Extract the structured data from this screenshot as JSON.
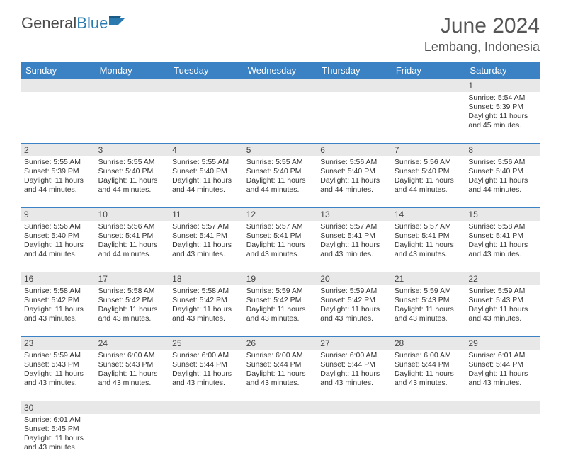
{
  "brand": {
    "text1": "General",
    "text2": "Blue"
  },
  "title": "June 2024",
  "location": "Lembang, Indonesia",
  "colors": {
    "header_bg": "#3b82c4",
    "header_text": "#ffffff",
    "daynum_bg": "#e8e8e8",
    "cell_border": "#3b82c4",
    "body_text": "#333333",
    "title_text": "#555555"
  },
  "day_names": [
    "Sunday",
    "Monday",
    "Tuesday",
    "Wednesday",
    "Thursday",
    "Friday",
    "Saturday"
  ],
  "weeks": [
    [
      null,
      null,
      null,
      null,
      null,
      null,
      {
        "n": "1",
        "sr": "Sunrise: 5:54 AM",
        "ss": "Sunset: 5:39 PM",
        "d1": "Daylight: 11 hours",
        "d2": "and 45 minutes."
      }
    ],
    [
      {
        "n": "2",
        "sr": "Sunrise: 5:55 AM",
        "ss": "Sunset: 5:39 PM",
        "d1": "Daylight: 11 hours",
        "d2": "and 44 minutes."
      },
      {
        "n": "3",
        "sr": "Sunrise: 5:55 AM",
        "ss": "Sunset: 5:40 PM",
        "d1": "Daylight: 11 hours",
        "d2": "and 44 minutes."
      },
      {
        "n": "4",
        "sr": "Sunrise: 5:55 AM",
        "ss": "Sunset: 5:40 PM",
        "d1": "Daylight: 11 hours",
        "d2": "and 44 minutes."
      },
      {
        "n": "5",
        "sr": "Sunrise: 5:55 AM",
        "ss": "Sunset: 5:40 PM",
        "d1": "Daylight: 11 hours",
        "d2": "and 44 minutes."
      },
      {
        "n": "6",
        "sr": "Sunrise: 5:56 AM",
        "ss": "Sunset: 5:40 PM",
        "d1": "Daylight: 11 hours",
        "d2": "and 44 minutes."
      },
      {
        "n": "7",
        "sr": "Sunrise: 5:56 AM",
        "ss": "Sunset: 5:40 PM",
        "d1": "Daylight: 11 hours",
        "d2": "and 44 minutes."
      },
      {
        "n": "8",
        "sr": "Sunrise: 5:56 AM",
        "ss": "Sunset: 5:40 PM",
        "d1": "Daylight: 11 hours",
        "d2": "and 44 minutes."
      }
    ],
    [
      {
        "n": "9",
        "sr": "Sunrise: 5:56 AM",
        "ss": "Sunset: 5:40 PM",
        "d1": "Daylight: 11 hours",
        "d2": "and 44 minutes."
      },
      {
        "n": "10",
        "sr": "Sunrise: 5:56 AM",
        "ss": "Sunset: 5:41 PM",
        "d1": "Daylight: 11 hours",
        "d2": "and 44 minutes."
      },
      {
        "n": "11",
        "sr": "Sunrise: 5:57 AM",
        "ss": "Sunset: 5:41 PM",
        "d1": "Daylight: 11 hours",
        "d2": "and 43 minutes."
      },
      {
        "n": "12",
        "sr": "Sunrise: 5:57 AM",
        "ss": "Sunset: 5:41 PM",
        "d1": "Daylight: 11 hours",
        "d2": "and 43 minutes."
      },
      {
        "n": "13",
        "sr": "Sunrise: 5:57 AM",
        "ss": "Sunset: 5:41 PM",
        "d1": "Daylight: 11 hours",
        "d2": "and 43 minutes."
      },
      {
        "n": "14",
        "sr": "Sunrise: 5:57 AM",
        "ss": "Sunset: 5:41 PM",
        "d1": "Daylight: 11 hours",
        "d2": "and 43 minutes."
      },
      {
        "n": "15",
        "sr": "Sunrise: 5:58 AM",
        "ss": "Sunset: 5:41 PM",
        "d1": "Daylight: 11 hours",
        "d2": "and 43 minutes."
      }
    ],
    [
      {
        "n": "16",
        "sr": "Sunrise: 5:58 AM",
        "ss": "Sunset: 5:42 PM",
        "d1": "Daylight: 11 hours",
        "d2": "and 43 minutes."
      },
      {
        "n": "17",
        "sr": "Sunrise: 5:58 AM",
        "ss": "Sunset: 5:42 PM",
        "d1": "Daylight: 11 hours",
        "d2": "and 43 minutes."
      },
      {
        "n": "18",
        "sr": "Sunrise: 5:58 AM",
        "ss": "Sunset: 5:42 PM",
        "d1": "Daylight: 11 hours",
        "d2": "and 43 minutes."
      },
      {
        "n": "19",
        "sr": "Sunrise: 5:59 AM",
        "ss": "Sunset: 5:42 PM",
        "d1": "Daylight: 11 hours",
        "d2": "and 43 minutes."
      },
      {
        "n": "20",
        "sr": "Sunrise: 5:59 AM",
        "ss": "Sunset: 5:42 PM",
        "d1": "Daylight: 11 hours",
        "d2": "and 43 minutes."
      },
      {
        "n": "21",
        "sr": "Sunrise: 5:59 AM",
        "ss": "Sunset: 5:43 PM",
        "d1": "Daylight: 11 hours",
        "d2": "and 43 minutes."
      },
      {
        "n": "22",
        "sr": "Sunrise: 5:59 AM",
        "ss": "Sunset: 5:43 PM",
        "d1": "Daylight: 11 hours",
        "d2": "and 43 minutes."
      }
    ],
    [
      {
        "n": "23",
        "sr": "Sunrise: 5:59 AM",
        "ss": "Sunset: 5:43 PM",
        "d1": "Daylight: 11 hours",
        "d2": "and 43 minutes."
      },
      {
        "n": "24",
        "sr": "Sunrise: 6:00 AM",
        "ss": "Sunset: 5:43 PM",
        "d1": "Daylight: 11 hours",
        "d2": "and 43 minutes."
      },
      {
        "n": "25",
        "sr": "Sunrise: 6:00 AM",
        "ss": "Sunset: 5:44 PM",
        "d1": "Daylight: 11 hours",
        "d2": "and 43 minutes."
      },
      {
        "n": "26",
        "sr": "Sunrise: 6:00 AM",
        "ss": "Sunset: 5:44 PM",
        "d1": "Daylight: 11 hours",
        "d2": "and 43 minutes."
      },
      {
        "n": "27",
        "sr": "Sunrise: 6:00 AM",
        "ss": "Sunset: 5:44 PM",
        "d1": "Daylight: 11 hours",
        "d2": "and 43 minutes."
      },
      {
        "n": "28",
        "sr": "Sunrise: 6:00 AM",
        "ss": "Sunset: 5:44 PM",
        "d1": "Daylight: 11 hours",
        "d2": "and 43 minutes."
      },
      {
        "n": "29",
        "sr": "Sunrise: 6:01 AM",
        "ss": "Sunset: 5:44 PM",
        "d1": "Daylight: 11 hours",
        "d2": "and 43 minutes."
      }
    ],
    [
      {
        "n": "30",
        "sr": "Sunrise: 6:01 AM",
        "ss": "Sunset: 5:45 PM",
        "d1": "Daylight: 11 hours",
        "d2": "and 43 minutes."
      },
      null,
      null,
      null,
      null,
      null,
      null
    ]
  ]
}
